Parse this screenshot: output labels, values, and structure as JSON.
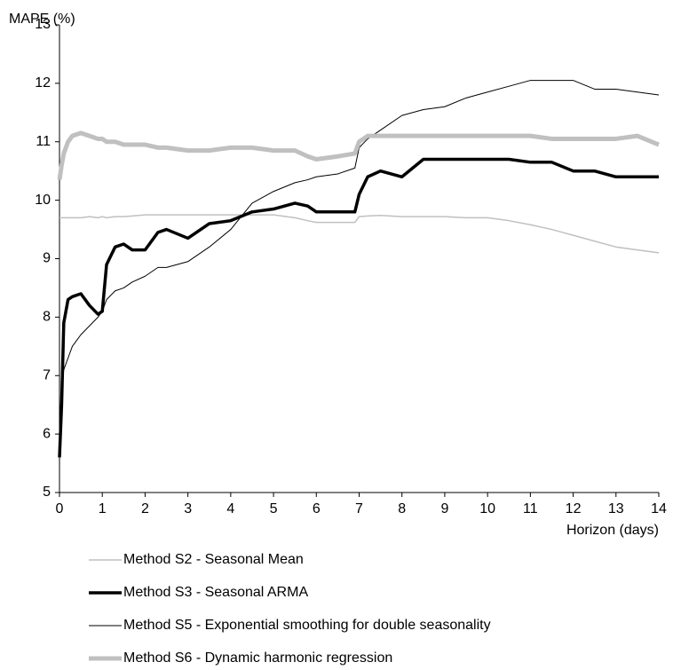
{
  "chart_data": {
    "type": "line",
    "y_label": "MAPE (%)",
    "x_label": "Horizon (days)",
    "xlim": [
      0,
      14
    ],
    "xticks": [
      0,
      1,
      2,
      3,
      4,
      5,
      6,
      7,
      8,
      9,
      10,
      11,
      12,
      13,
      14
    ],
    "ylim": [
      5,
      13
    ],
    "yticks": [
      5,
      6,
      7,
      8,
      9,
      10,
      11,
      12,
      13
    ],
    "grid": false,
    "x": [
      0,
      0.05,
      0.1,
      0.2,
      0.3,
      0.5,
      0.7,
      0.9,
      1,
      1.1,
      1.3,
      1.5,
      1.7,
      2,
      2.3,
      2.5,
      3,
      3.5,
      4,
      4.5,
      5,
      5.5,
      5.8,
      6,
      6.5,
      6.9,
      7,
      7.2,
      7.5,
      8,
      8.5,
      9,
      9.5,
      10,
      10.5,
      11,
      11.5,
      12,
      12.5,
      13,
      13.5,
      14
    ],
    "series": [
      {
        "name": "Method S2 - Seasonal Mean",
        "color": "#c0c0c0",
        "width": 1.5,
        "values": [
          9.7,
          9.7,
          9.7,
          9.7,
          9.7,
          9.7,
          9.72,
          9.7,
          9.72,
          9.7,
          9.72,
          9.72,
          9.73,
          9.75,
          9.75,
          9.75,
          9.75,
          9.75,
          9.75,
          9.75,
          9.75,
          9.7,
          9.65,
          9.62,
          9.62,
          9.62,
          9.72,
          9.73,
          9.74,
          9.72,
          9.72,
          9.72,
          9.7,
          9.7,
          9.65,
          9.58,
          9.5,
          9.4,
          9.3,
          9.2,
          9.15,
          9.1
        ]
      },
      {
        "name": "Method S3 - Seasonal ARMA",
        "color": "#000000",
        "width": 3.5,
        "values": [
          5.6,
          6.5,
          7.9,
          8.3,
          8.35,
          8.4,
          8.2,
          8.05,
          8.1,
          8.9,
          9.2,
          9.25,
          9.15,
          9.15,
          9.45,
          9.5,
          9.35,
          9.6,
          9.65,
          9.8,
          9.85,
          9.95,
          9.9,
          9.8,
          9.8,
          9.8,
          10.1,
          10.4,
          10.5,
          10.4,
          10.7,
          10.7,
          10.7,
          10.7,
          10.7,
          10.65,
          10.65,
          10.5,
          10.5,
          10.4,
          10.4,
          10.4
        ]
      },
      {
        "name": "Method S5 - Exponential smoothing for double seasonality",
        "color": "#000000",
        "width": 1,
        "values": [
          6.1,
          6.8,
          7.1,
          7.3,
          7.5,
          7.7,
          7.85,
          8.0,
          8.1,
          8.3,
          8.45,
          8.5,
          8.6,
          8.7,
          8.85,
          8.85,
          8.95,
          9.2,
          9.5,
          9.95,
          10.15,
          10.3,
          10.35,
          10.4,
          10.45,
          10.55,
          10.9,
          11.05,
          11.2,
          11.45,
          11.55,
          11.6,
          11.75,
          11.85,
          11.95,
          12.05,
          12.05,
          12.05,
          11.9,
          11.9,
          11.85,
          11.8
        ]
      },
      {
        "name": "Method S6 - Dynamic harmonic regression",
        "color": "#c0c0c0",
        "width": 5,
        "values": [
          10.35,
          10.6,
          10.8,
          11.0,
          11.1,
          11.15,
          11.1,
          11.05,
          11.05,
          11.0,
          11.0,
          10.95,
          10.95,
          10.95,
          10.9,
          10.9,
          10.85,
          10.85,
          10.9,
          10.9,
          10.85,
          10.85,
          10.75,
          10.7,
          10.75,
          10.8,
          11.0,
          11.1,
          11.1,
          11.1,
          11.1,
          11.1,
          11.1,
          11.1,
          11.1,
          11.1,
          11.05,
          11.05,
          11.05,
          11.05,
          11.1,
          10.95
        ]
      }
    ]
  }
}
